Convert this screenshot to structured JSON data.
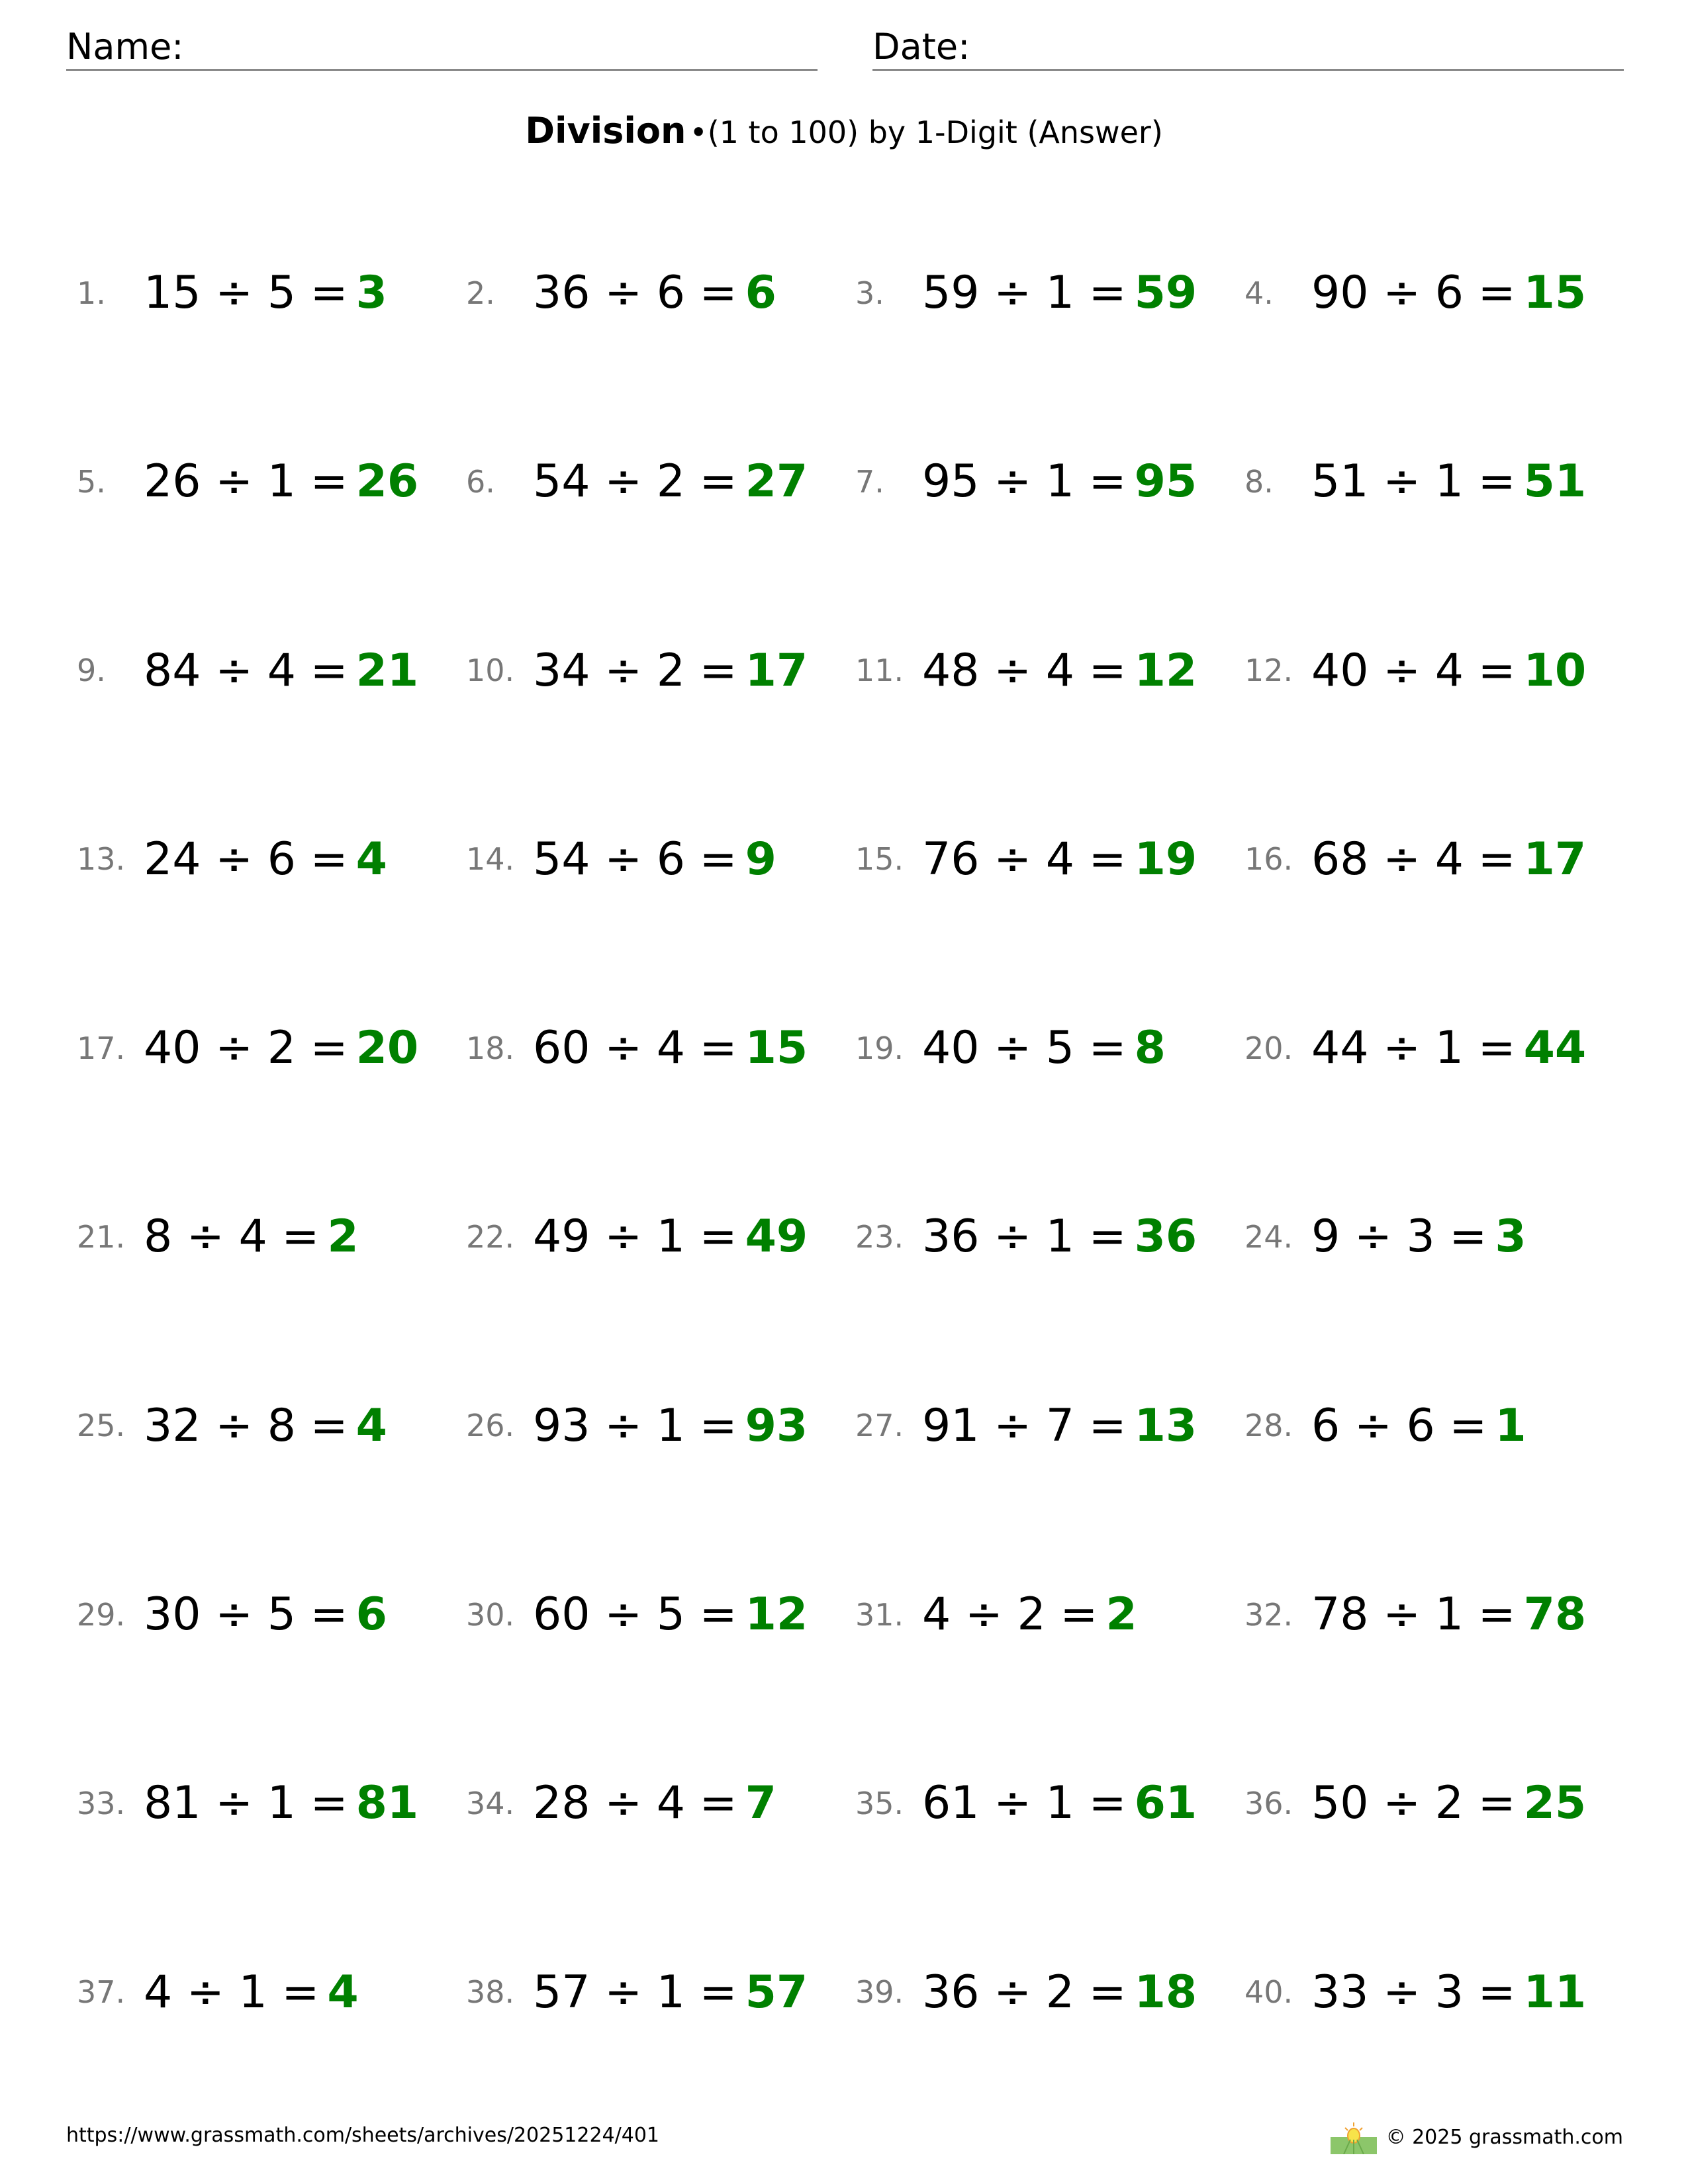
{
  "header": {
    "name_label": "Name:",
    "date_label": "Date:"
  },
  "title": {
    "main": "Division",
    "separator": "•",
    "sub": "(1 to 100) by 1-Digit (Answer)"
  },
  "colors": {
    "answer": "#008000",
    "number": "#777777"
  },
  "problems": [
    {
      "n": "1.",
      "a": 15,
      "b": 5,
      "ans": 3
    },
    {
      "n": "2.",
      "a": 36,
      "b": 6,
      "ans": 6
    },
    {
      "n": "3.",
      "a": 59,
      "b": 1,
      "ans": 59
    },
    {
      "n": "4.",
      "a": 90,
      "b": 6,
      "ans": 15
    },
    {
      "n": "5.",
      "a": 26,
      "b": 1,
      "ans": 26
    },
    {
      "n": "6.",
      "a": 54,
      "b": 2,
      "ans": 27
    },
    {
      "n": "7.",
      "a": 95,
      "b": 1,
      "ans": 95
    },
    {
      "n": "8.",
      "a": 51,
      "b": 1,
      "ans": 51
    },
    {
      "n": "9.",
      "a": 84,
      "b": 4,
      "ans": 21
    },
    {
      "n": "10.",
      "a": 34,
      "b": 2,
      "ans": 17
    },
    {
      "n": "11.",
      "a": 48,
      "b": 4,
      "ans": 12
    },
    {
      "n": "12.",
      "a": 40,
      "b": 4,
      "ans": 10
    },
    {
      "n": "13.",
      "a": 24,
      "b": 6,
      "ans": 4
    },
    {
      "n": "14.",
      "a": 54,
      "b": 6,
      "ans": 9
    },
    {
      "n": "15.",
      "a": 76,
      "b": 4,
      "ans": 19
    },
    {
      "n": "16.",
      "a": 68,
      "b": 4,
      "ans": 17
    },
    {
      "n": "17.",
      "a": 40,
      "b": 2,
      "ans": 20
    },
    {
      "n": "18.",
      "a": 60,
      "b": 4,
      "ans": 15
    },
    {
      "n": "19.",
      "a": 40,
      "b": 5,
      "ans": 8
    },
    {
      "n": "20.",
      "a": 44,
      "b": 1,
      "ans": 44
    },
    {
      "n": "21.",
      "a": 8,
      "b": 4,
      "ans": 2
    },
    {
      "n": "22.",
      "a": 49,
      "b": 1,
      "ans": 49
    },
    {
      "n": "23.",
      "a": 36,
      "b": 1,
      "ans": 36
    },
    {
      "n": "24.",
      "a": 9,
      "b": 3,
      "ans": 3
    },
    {
      "n": "25.",
      "a": 32,
      "b": 8,
      "ans": 4
    },
    {
      "n": "26.",
      "a": 93,
      "b": 1,
      "ans": 93
    },
    {
      "n": "27.",
      "a": 91,
      "b": 7,
      "ans": 13
    },
    {
      "n": "28.",
      "a": 6,
      "b": 6,
      "ans": 1
    },
    {
      "n": "29.",
      "a": 30,
      "b": 5,
      "ans": 6
    },
    {
      "n": "30.",
      "a": 60,
      "b": 5,
      "ans": 12
    },
    {
      "n": "31.",
      "a": 4,
      "b": 2,
      "ans": 2
    },
    {
      "n": "32.",
      "a": 78,
      "b": 1,
      "ans": 78
    },
    {
      "n": "33.",
      "a": 81,
      "b": 1,
      "ans": 81
    },
    {
      "n": "34.",
      "a": 28,
      "b": 4,
      "ans": 7
    },
    {
      "n": "35.",
      "a": 61,
      "b": 1,
      "ans": 61
    },
    {
      "n": "36.",
      "a": 50,
      "b": 2,
      "ans": 25
    },
    {
      "n": "37.",
      "a": 4,
      "b": 1,
      "ans": 4
    },
    {
      "n": "38.",
      "a": 57,
      "b": 1,
      "ans": 57
    },
    {
      "n": "39.",
      "a": 36,
      "b": 2,
      "ans": 18
    },
    {
      "n": "40.",
      "a": 33,
      "b": 3,
      "ans": 11
    }
  ],
  "footer": {
    "url": "https://www.grassmath.com/sheets/archives/20251224/401",
    "copyright": "© 2025 grassmath.com",
    "logo_icon": "sun-grass-icon"
  }
}
